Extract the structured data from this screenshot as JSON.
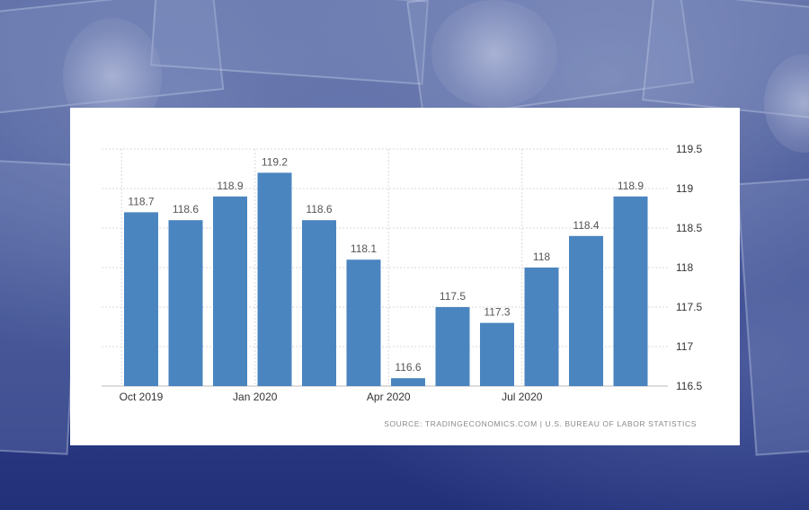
{
  "chart_data": {
    "type": "bar",
    "categories": [
      "Oct 2019",
      "Nov 2019",
      "Dec 2019",
      "Jan 2020",
      "Feb 2020",
      "Mar 2020",
      "Apr 2020",
      "May 2020",
      "Jun 2020",
      "Jul 2020",
      "Aug 2020",
      "Sep 2020"
    ],
    "values": [
      118.7,
      118.6,
      118.9,
      119.2,
      118.6,
      118.1,
      116.6,
      117.5,
      117.3,
      118,
      118.4,
      118.9
    ],
    "data_labels": [
      "118.7",
      "118.6",
      "118.9",
      "119.2",
      "118.6",
      "118.1",
      "116.6",
      "117.5",
      "117.3",
      "118",
      "118.4",
      "118.9"
    ],
    "x_tick_labels": [
      "Oct 2019",
      "Jan 2020",
      "Apr 2020",
      "Jul 2020"
    ],
    "y_ticks": [
      "116.5",
      "117",
      "117.5",
      "118",
      "118.5",
      "119",
      "119.5"
    ],
    "ylim": [
      116.5,
      119.5
    ],
    "y_axis_side": "right",
    "grid": true,
    "bar_color": "#4a85c0",
    "source": "SOURCE: TRADINGECONOMICS.COM  |  U.S. BUREAU OF LABOR STATISTICS"
  }
}
